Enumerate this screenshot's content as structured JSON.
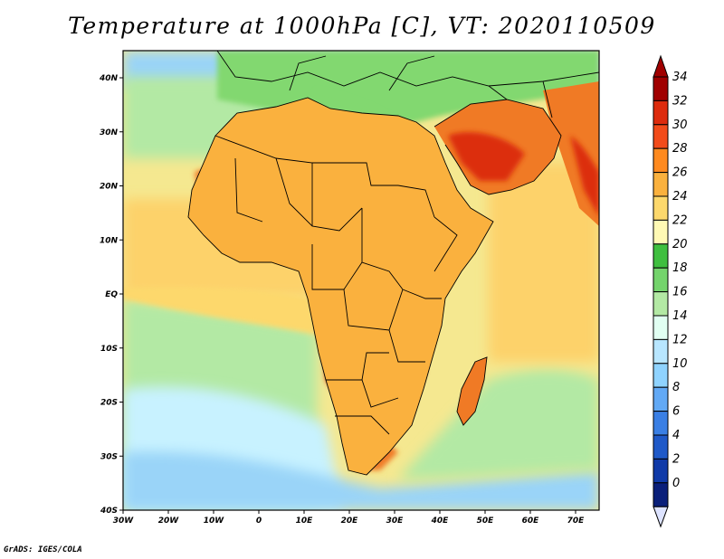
{
  "title": "Temperature at 1000hPa [C], VT: 2020110509",
  "footer": "GrADS: IGES/COLA",
  "map": {
    "lon_ticks": [
      "30W",
      "20W",
      "10W",
      "0",
      "10E",
      "20E",
      "30E",
      "40E",
      "50E",
      "60E",
      "70E"
    ],
    "lat_ticks": [
      "40N",
      "30N",
      "20N",
      "10N",
      "EQ",
      "10S",
      "20S",
      "30S",
      "40S"
    ]
  },
  "colorbar": {
    "labels": [
      "34",
      "32",
      "30",
      "28",
      "26",
      "24",
      "22",
      "20",
      "18",
      "16",
      "14",
      "12",
      "10",
      "8",
      "6",
      "4",
      "2",
      "0"
    ],
    "colors": [
      "#a00000",
      "#dd2b0d",
      "#f24b1a",
      "#ff8a1f",
      "#fab13e",
      "#fdd86c",
      "#fff9b4",
      "#3fbf3f",
      "#74d46c",
      "#b3e9a4",
      "#e1fff2",
      "#b8e6ff",
      "#8fd3ff",
      "#62a9f5",
      "#3a7fe4",
      "#1f59c8",
      "#103aa8",
      "#0a1f7a"
    ]
  },
  "colors": {
    "ocean_cold": "#9ad4f8",
    "ocean_cool": "#c8f2ff",
    "ocean_mid": "#f5e890",
    "ocean_warm": "#fdd26a",
    "land_green": "#82d870",
    "land_hot": "#f07a25",
    "land_hottest": "#dc2d0c",
    "border": "#000000"
  }
}
